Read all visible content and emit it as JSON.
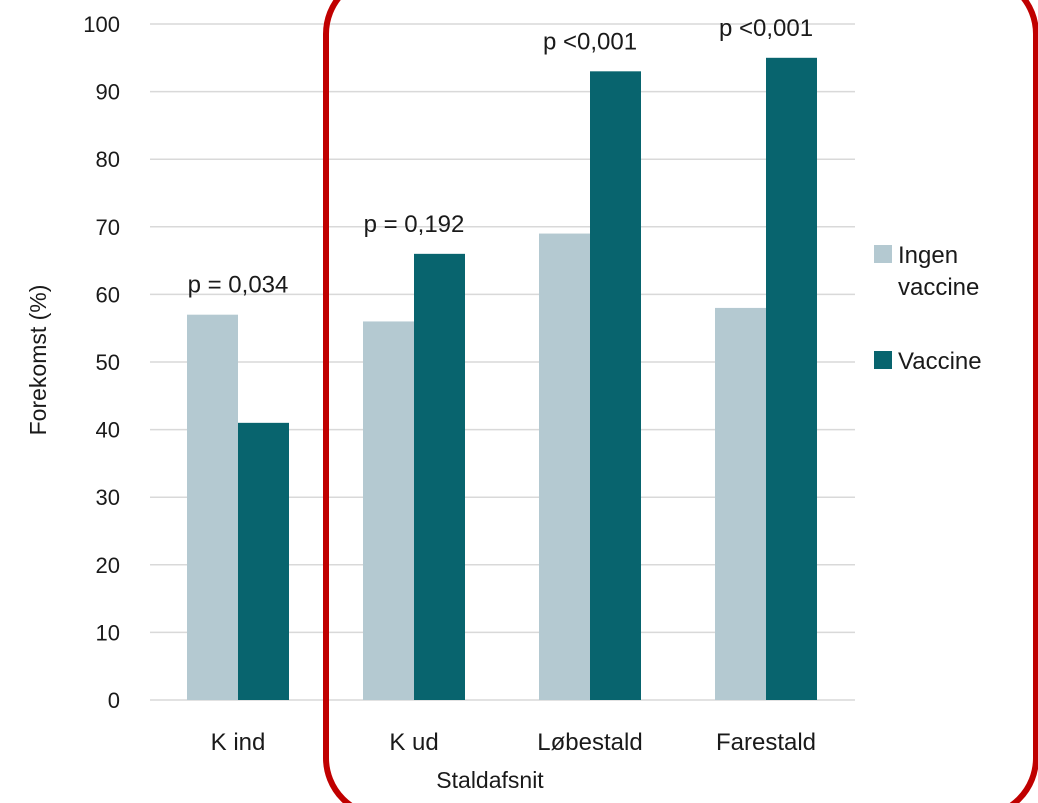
{
  "chart_data": {
    "type": "bar",
    "categories": [
      "K ind",
      "K ud",
      "Løbestald",
      "Farestald"
    ],
    "series": [
      {
        "name": "Ingen vaccine",
        "values": [
          57,
          56,
          69,
          58
        ]
      },
      {
        "name": "Vaccine",
        "values": [
          41,
          66,
          93,
          95
        ]
      }
    ],
    "annotations": [
      "p = 0,034",
      "p = 0,192",
      "p <0,001",
      "p <0,001"
    ],
    "xlabel": "Staldafsnit",
    "ylabel": "Forekomst (%)",
    "ylim": [
      0,
      100
    ],
    "yticks": [
      0,
      10,
      20,
      30,
      40,
      50,
      60,
      70,
      80,
      90,
      100
    ],
    "grid": true,
    "legend_position": "right",
    "highlight": "rounded red frame around K ud, Løbestald and Farestald"
  },
  "colors": {
    "Ingen vaccine": "#b4c9d1",
    "Vaccine": "#08646e",
    "grid": "#d9d9d9",
    "highlight": "#c00000"
  }
}
